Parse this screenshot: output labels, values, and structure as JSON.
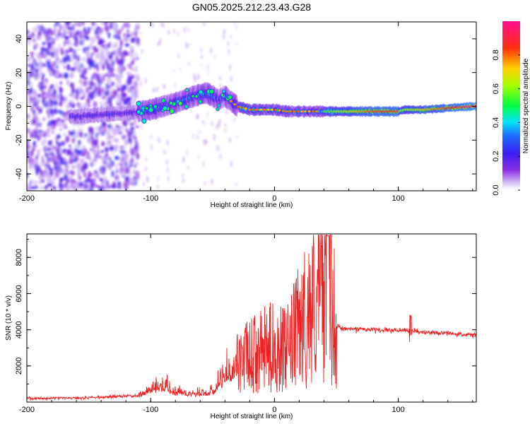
{
  "title": "GN05.2025.212.23.43.G28",
  "colors": {
    "snr_line": "#ee2222",
    "frame": "#000000"
  },
  "chart_data": [
    {
      "type": "heatmap",
      "xlabel": "Height of straight line (km)",
      "ylabel": "Frequency (Hz)",
      "xlim": [
        -200,
        163
      ],
      "ylim": [
        -50,
        50
      ],
      "xticks": [
        "-200",
        "-100",
        "0",
        "100"
      ],
      "yticks": [
        "-40",
        "-20",
        "0",
        "20",
        "40"
      ],
      "colorbar": {
        "label": "Normalized spectral amplitude",
        "range": [
          0,
          1
        ],
        "ticks": [
          "0.0",
          "0.2",
          "0.4",
          "0.6",
          "0.8"
        ],
        "colormap": "rainbow (purple-blue-cyan-green-yellow-red-pink)"
      },
      "ridge_frequency": {
        "x": [
          -160,
          -140,
          -120,
          -100,
          -80,
          -65,
          -55,
          -45,
          -40,
          -30,
          -20,
          -10,
          0,
          10,
          20,
          30,
          40,
          50,
          60,
          70,
          80,
          90,
          100,
          105,
          120,
          140,
          160
        ],
        "y": [
          -6,
          -5,
          -4,
          -2,
          2,
          6,
          8,
          4,
          6,
          0,
          -2,
          -2,
          -2,
          -3,
          -3,
          -3,
          -3,
          -3,
          -3,
          -3,
          -3,
          -3,
          -3,
          -2,
          -2,
          -1,
          0
        ]
      }
    },
    {
      "type": "line",
      "xlabel": "Height of straight line (km)",
      "ylabel": "SNR (10 * v/v)",
      "xlim": [
        -200,
        163
      ],
      "ylim": [
        0,
        9300
      ],
      "xticks": [
        "-200",
        "-100",
        "0",
        "100"
      ],
      "yticks": [
        "2000",
        "4000",
        "6000",
        "8000"
      ],
      "series": [
        {
          "x": [
            -200,
            -150,
            -110,
            -100,
            -90,
            -80,
            -70,
            -60,
            -50,
            -40,
            -30,
            -20,
            -10,
            0,
            10,
            20,
            30,
            40,
            43,
            46,
            50,
            55,
            60,
            80,
            100,
            110,
            120,
            140,
            163
          ],
          "y": [
            200,
            250,
            350,
            800,
            900,
            600,
            500,
            500,
            600,
            1500,
            2200,
            2500,
            2800,
            3100,
            2800,
            4200,
            5200,
            6500,
            7400,
            5500,
            4200,
            4100,
            4050,
            4000,
            3950,
            3950,
            3850,
            3800,
            3700
          ]
        }
      ]
    }
  ]
}
